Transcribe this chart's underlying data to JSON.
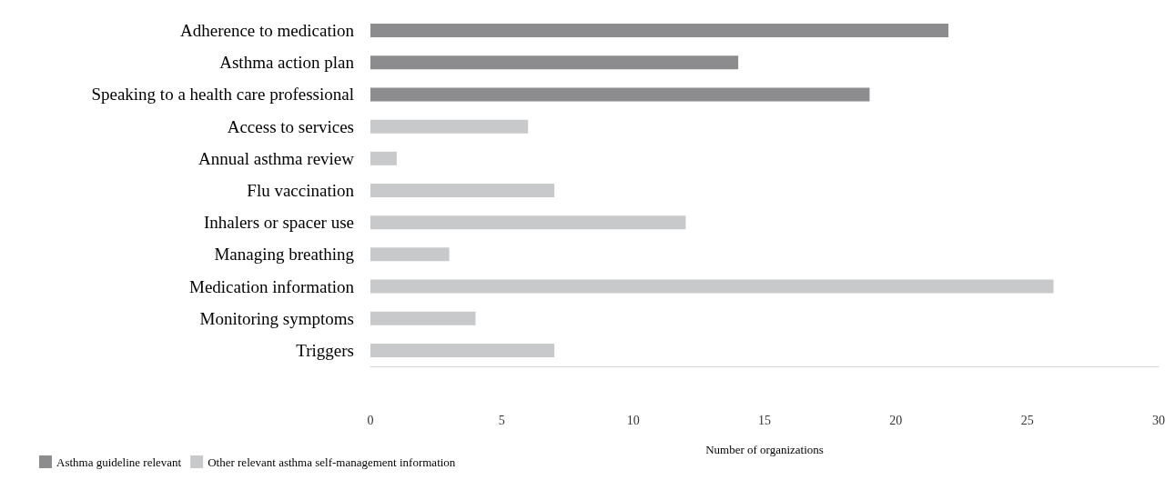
{
  "chart_data": {
    "type": "bar",
    "orientation": "horizontal",
    "stacked": true,
    "xlabel": "Number of organizations",
    "categories": [
      "Adherence to medication",
      "Asthma action plan",
      "Speaking to a health care professional",
      "Access to services",
      "Annual asthma review",
      "Flu vaccination",
      "Inhalers or spacer use",
      "Managing breathing",
      "Medication information",
      "Monitoring symptoms",
      "Triggers"
    ],
    "series": [
      {
        "name": "Asthma guideline relevant",
        "color": "#8c8c8e",
        "values": [
          22,
          14,
          19,
          null,
          null,
          null,
          null,
          null,
          null,
          null,
          null
        ]
      },
      {
        "name": "Other relevant asthma self-management information",
        "color": "#c8c9cb",
        "values": [
          null,
          null,
          null,
          6,
          1,
          7,
          12,
          3,
          26,
          4,
          7
        ]
      }
    ],
    "xlim": [
      0,
      30
    ],
    "xticks": [
      0,
      5,
      10,
      15,
      20,
      25,
      30
    ],
    "grid": false,
    "legend": "bottom left"
  }
}
